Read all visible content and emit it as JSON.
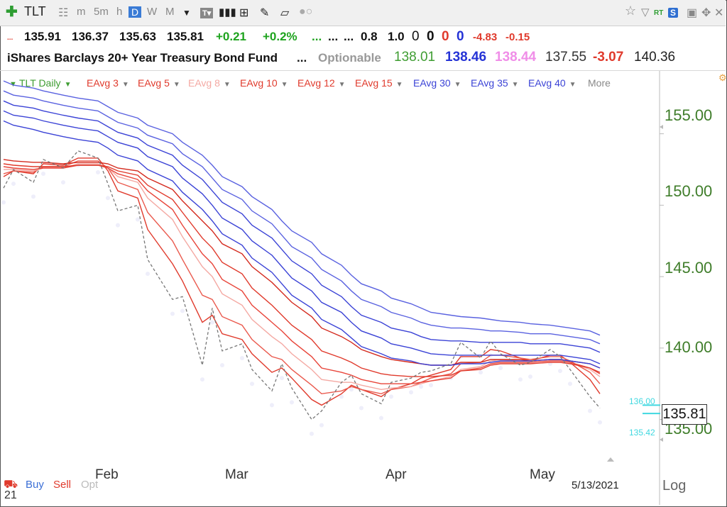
{
  "toolbar": {
    "symbol": "TLT",
    "intervals": [
      "m",
      "5m",
      "h",
      "D",
      "W",
      "M"
    ],
    "selected_interval": "D",
    "rt_label": "RT",
    "s_label": "S",
    "icons": [
      "plus-icon",
      "grid-icon",
      "dropdown-icon",
      "text-tool-icon",
      "bar-chart-icon",
      "table-icon",
      "pencil-icon",
      "note-icon",
      "toggle-icon",
      "star-icon",
      "filter-icon",
      "save-icon",
      "move-icon",
      "close-icon"
    ]
  },
  "quote_row1": {
    "dots": "...",
    "open": "135.91",
    "high": "136.37",
    "low": "135.63",
    "close": "135.81",
    "change": "+0.21",
    "change_pct": "+0.2%",
    "dots2": "...",
    "dots3": "...",
    "dots4": "...",
    "v1": "0.8",
    "v2": "1.0",
    "z1": "0",
    "z2": "0",
    "z3": "0",
    "z4": "0",
    "n1": "-4.83",
    "n2": "-0.15"
  },
  "quote_row2": {
    "name": "iShares Barclays 20+ Year Treasury Bond Fund",
    "dots": "...",
    "optionable": "Optionable",
    "p1": "138.01",
    "p2": "138.46",
    "p3": "138.44",
    "p4": "137.55",
    "p5": "-3.07",
    "p6": "140.36"
  },
  "indicators": {
    "main": "TLT Daily",
    "list": [
      "EAvg 3",
      "EAvg 5",
      "EAvg 8",
      "EAvg 10",
      "EAvg 12",
      "EAvg 15",
      "EAvg 30",
      "EAvg 35",
      "EAvg 40"
    ],
    "more": "More"
  },
  "colors": {
    "short_ema": "#e03a2c",
    "short_ema_light": "#f4a9a3",
    "long_ema": "#3b43d6",
    "price": "#777777",
    "axis_text": "#3f7d2a",
    "cyan": "#40d8e0"
  },
  "chart_data": {
    "type": "line",
    "title": "TLT Daily",
    "y_ticks": [
      155.0,
      150.0,
      145.0,
      140.0,
      135.0
    ],
    "y_tick_labels": [
      "155.00",
      "150.00",
      "145.00",
      "140.00",
      "135.00"
    ],
    "ylim": [
      132.1,
      159.4
    ],
    "x_tick_labels": [
      "Feb",
      "Mar",
      "Apr",
      "May"
    ],
    "x_ticks": [
      "2021-02-01",
      "2021-03-01",
      "2021-04-01",
      "2021-05-03"
    ],
    "x_range": [
      "2021-01-13",
      "2021-05-13"
    ],
    "current_price": "135.81",
    "price_marker_high": "136.00",
    "price_marker_low": "135.42",
    "last_date": "5/13/2021",
    "price": {
      "dates": [
        "2021-01-13",
        "2021-01-15",
        "2021-01-19",
        "2021-01-21",
        "2021-01-25",
        "2021-01-28",
        "2021-02-01",
        "2021-02-03",
        "2021-02-05",
        "2021-02-09",
        "2021-02-11",
        "2021-02-16",
        "2021-02-18",
        "2021-02-22",
        "2021-02-24",
        "2021-02-26",
        "2021-03-02",
        "2021-03-04",
        "2021-03-08",
        "2021-03-10",
        "2021-03-12",
        "2021-03-16",
        "2021-03-18",
        "2021-03-22",
        "2021-03-24",
        "2021-03-26",
        "2021-03-30",
        "2021-04-01",
        "2021-04-05",
        "2021-04-07",
        "2021-04-09",
        "2021-04-13",
        "2021-04-15",
        "2021-04-19",
        "2021-04-21",
        "2021-04-23",
        "2021-04-27",
        "2021-04-29",
        "2021-05-03",
        "2021-05-05",
        "2021-05-07",
        "2021-05-11",
        "2021-05-13"
      ],
      "values": [
        151.2,
        152.5,
        151.6,
        153.2,
        152.6,
        153.8,
        153.3,
        151.5,
        149.6,
        150.0,
        146.2,
        143.4,
        143.6,
        138.8,
        142.8,
        139.8,
        140.3,
        138.5,
        137.0,
        138.9,
        137.2,
        135.0,
        135.6,
        137.6,
        138.1,
        136.8,
        136.1,
        137.6,
        137.9,
        138.3,
        138.4,
        138.9,
        140.4,
        139.3,
        140.5,
        139.6,
        138.8,
        139.0,
        139.9,
        139.4,
        138.5,
        136.6,
        135.8
      ]
    },
    "series": [
      {
        "name": "EAvg 3",
        "color": "#e03a2c",
        "values": [
          152.0,
          152.4,
          152.2,
          152.9,
          152.8,
          153.3,
          153.3,
          152.4,
          151.0,
          150.5,
          148.3,
          145.9,
          144.7,
          141.8,
          142.3,
          141.0,
          140.6,
          139.6,
          138.3,
          138.6,
          137.9,
          136.4,
          136.0,
          136.8,
          137.4,
          137.1,
          136.6,
          137.1,
          137.5,
          137.9,
          138.1,
          138.5,
          139.4,
          139.4,
          139.9,
          139.8,
          139.3,
          139.1,
          139.5,
          139.5,
          139.0,
          137.8,
          136.8
        ]
      },
      {
        "name": "EAvg 5",
        "color": "#ea5a4e",
        "values": [
          152.2,
          152.4,
          152.3,
          152.7,
          152.7,
          153.1,
          153.1,
          152.6,
          151.6,
          151.1,
          149.5,
          147.5,
          146.2,
          143.7,
          143.4,
          142.2,
          141.6,
          140.6,
          139.4,
          139.2,
          138.5,
          137.4,
          136.8,
          137.0,
          137.3,
          137.1,
          136.8,
          137.1,
          137.3,
          137.6,
          137.9,
          138.2,
          138.9,
          139.0,
          139.5,
          139.5,
          139.3,
          139.2,
          139.4,
          139.4,
          139.1,
          138.3,
          137.5
        ]
      },
      {
        "name": "EAvg 8",
        "color": "#f4a9a3",
        "values": [
          152.5,
          152.5,
          152.4,
          152.6,
          152.6,
          152.9,
          152.9,
          152.6,
          152.0,
          151.6,
          150.5,
          149.0,
          147.8,
          145.7,
          145.0,
          143.8,
          143.0,
          142.0,
          140.8,
          140.3,
          139.6,
          138.5,
          137.8,
          137.6,
          137.6,
          137.4,
          137.1,
          137.2,
          137.3,
          137.5,
          137.7,
          138.0,
          138.5,
          138.7,
          139.1,
          139.2,
          139.1,
          139.1,
          139.2,
          139.2,
          139.0,
          138.5,
          138.0
        ]
      },
      {
        "name": "EAvg 10",
        "color": "#e8453a",
        "values": [
          152.7,
          152.6,
          152.5,
          152.6,
          152.6,
          152.8,
          152.8,
          152.6,
          152.2,
          151.8,
          151.0,
          149.7,
          148.6,
          146.6,
          145.9,
          144.8,
          144.0,
          143.0,
          141.8,
          141.2,
          140.5,
          139.4,
          138.6,
          138.3,
          138.1,
          137.8,
          137.5,
          137.5,
          137.5,
          137.6,
          137.7,
          137.9,
          138.4,
          138.6,
          138.9,
          139.0,
          139.0,
          139.0,
          139.1,
          139.1,
          139.0,
          138.6,
          138.2
        ]
      },
      {
        "name": "EAvg 12",
        "color": "#e03a2c",
        "values": [
          152.9,
          152.8,
          152.7,
          152.7,
          152.7,
          152.8,
          152.8,
          152.7,
          152.4,
          152.1,
          151.4,
          150.4,
          149.5,
          147.7,
          147.0,
          146.0,
          145.2,
          144.2,
          143.0,
          142.3,
          141.6,
          140.6,
          139.8,
          139.3,
          139.0,
          138.6,
          138.2,
          138.1,
          138.0,
          138.0,
          138.0,
          138.1,
          138.4,
          138.5,
          138.8,
          138.9,
          138.9,
          138.9,
          139.0,
          139.0,
          138.9,
          138.6,
          138.3
        ]
      },
      {
        "name": "EAvg 15",
        "color": "#d42a1e",
        "values": [
          153.2,
          153.1,
          153.0,
          153.0,
          152.9,
          153.0,
          153.0,
          152.9,
          152.6,
          152.4,
          151.9,
          151.1,
          150.3,
          148.9,
          148.2,
          147.3,
          146.6,
          145.7,
          144.6,
          143.9,
          143.2,
          142.2,
          141.4,
          140.8,
          140.4,
          139.9,
          139.4,
          139.2,
          139.0,
          138.9,
          138.8,
          138.8,
          139.0,
          139.0,
          139.2,
          139.2,
          139.2,
          139.1,
          139.2,
          139.2,
          139.1,
          138.9,
          138.6
        ]
      },
      {
        "name": "EAvg 30",
        "color": "#3b43d6",
        "values": [
          155.9,
          155.6,
          155.3,
          155.1,
          154.8,
          154.6,
          154.4,
          154.0,
          153.5,
          153.1,
          152.5,
          151.7,
          150.9,
          149.7,
          148.9,
          148.0,
          147.2,
          146.3,
          145.3,
          144.5,
          143.7,
          142.8,
          142.0,
          141.3,
          140.7,
          140.1,
          139.6,
          139.3,
          139.1,
          138.9,
          138.8,
          138.8,
          138.9,
          138.9,
          139.0,
          139.1,
          139.1,
          139.1,
          139.2,
          139.2,
          139.1,
          138.9,
          138.6
        ]
      },
      {
        "name": "EAvg 35",
        "color": "#3b43d6",
        "values": [
          156.6,
          156.3,
          156.1,
          155.9,
          155.6,
          155.4,
          155.2,
          154.8,
          154.4,
          154.0,
          153.4,
          152.7,
          151.9,
          150.8,
          150.0,
          149.1,
          148.3,
          147.5,
          146.5,
          145.7,
          144.9,
          144.0,
          143.2,
          142.5,
          141.8,
          141.2,
          140.7,
          140.3,
          140.0,
          139.8,
          139.6,
          139.5,
          139.5,
          139.5,
          139.5,
          139.5,
          139.5,
          139.5,
          139.5,
          139.5,
          139.4,
          139.2,
          138.9
        ]
      },
      {
        "name": "EAvg 40",
        "color": "#3b43d6",
        "values": [
          157.3,
          157.0,
          156.8,
          156.6,
          156.3,
          156.1,
          155.9,
          155.5,
          155.1,
          154.7,
          154.2,
          153.5,
          152.8,
          151.8,
          151.0,
          150.2,
          149.4,
          148.6,
          147.7,
          146.9,
          146.1,
          145.2,
          144.4,
          143.6,
          142.9,
          142.3,
          141.8,
          141.4,
          141.1,
          140.8,
          140.6,
          140.5,
          140.5,
          140.4,
          140.4,
          140.4,
          140.4,
          140.3,
          140.3,
          140.3,
          140.2,
          140.0,
          139.7
        ]
      },
      {
        "name": "",
        "color": "#5a62e0",
        "values": [
          158.0,
          157.7,
          157.5,
          157.3,
          157.0,
          156.8,
          156.6,
          156.2,
          155.8,
          155.4,
          154.9,
          154.3,
          153.6,
          152.7,
          151.9,
          151.1,
          150.4,
          149.6,
          148.7,
          147.9,
          147.1,
          146.3,
          145.5,
          144.7,
          144.0,
          143.4,
          142.9,
          142.5,
          142.1,
          141.8,
          141.6,
          141.4,
          141.4,
          141.3,
          141.2,
          141.2,
          141.1,
          141.0,
          141.0,
          140.9,
          140.8,
          140.6,
          140.3
        ]
      },
      {
        "name": "",
        "color": "#5a62e0",
        "values": [
          158.7,
          158.4,
          158.2,
          158.0,
          157.7,
          157.5,
          157.3,
          156.9,
          156.5,
          156.1,
          155.6,
          155.0,
          154.4,
          153.5,
          152.8,
          152.0,
          151.3,
          150.6,
          149.7,
          148.9,
          148.2,
          147.4,
          146.6,
          145.8,
          145.1,
          144.5,
          144.0,
          143.5,
          143.1,
          142.8,
          142.5,
          142.3,
          142.2,
          142.1,
          142.0,
          141.9,
          141.8,
          141.7,
          141.6,
          141.5,
          141.4,
          141.2,
          140.9
        ]
      }
    ]
  },
  "bottom": {
    "buy": "Buy",
    "sell": "Sell",
    "opt": "Opt",
    "scale": "Log",
    "corner": "21"
  }
}
